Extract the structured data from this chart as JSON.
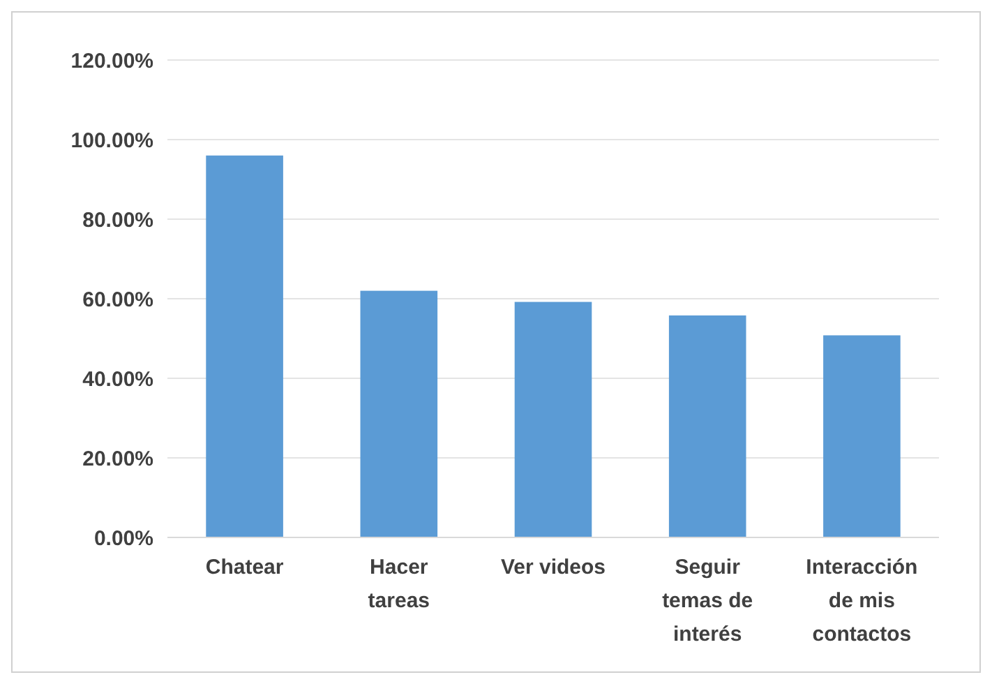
{
  "chart_data": {
    "type": "bar",
    "categories": [
      "Chatear",
      "Hacer tareas",
      "Ver videos",
      "Seguir temas de interés",
      "Interacción de mis contactos"
    ],
    "values": [
      96.0,
      62.0,
      59.2,
      55.8,
      50.8
    ],
    "color": "#5b9bd5",
    "ylim": [
      0,
      120
    ],
    "yticks": [
      {
        "value": 0,
        "label": "0.00%"
      },
      {
        "value": 20,
        "label": "20.00%"
      },
      {
        "value": 40,
        "label": "40.00%"
      },
      {
        "value": 60,
        "label": "60.00%"
      },
      {
        "value": 80,
        "label": "80.00%"
      },
      {
        "value": 100,
        "label": "100.00%"
      },
      {
        "value": 120,
        "label": "120.00%"
      }
    ],
    "grid": "y"
  }
}
